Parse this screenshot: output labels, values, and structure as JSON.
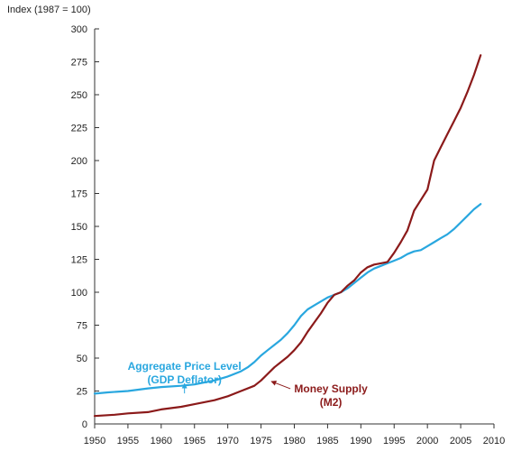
{
  "chart_data": {
    "type": "line",
    "title": "",
    "ylabel": "Index (1987 = 100)",
    "xlabel": "",
    "xlim": [
      1950,
      2010
    ],
    "ylim": [
      0,
      300
    ],
    "x_ticks": [
      1950,
      1955,
      1960,
      1965,
      1970,
      1975,
      1980,
      1985,
      1990,
      1995,
      2000,
      2005,
      2010
    ],
    "y_ticks": [
      0,
      25,
      50,
      75,
      100,
      125,
      150,
      175,
      200,
      225,
      250,
      275,
      300
    ],
    "grid": false,
    "colors": {
      "price": "#29a7df",
      "money": "#8b1a1a",
      "axis": "#333333"
    },
    "series": [
      {
        "key": "price",
        "x": [
          1950,
          1952,
          1955,
          1958,
          1960,
          1963,
          1965,
          1968,
          1970,
          1972,
          1973,
          1974,
          1975,
          1976,
          1977,
          1978,
          1979,
          1980,
          1981,
          1982,
          1983,
          1984,
          1985,
          1986,
          1987,
          1988,
          1989,
          1990,
          1991,
          1992,
          1993,
          1994,
          1995,
          1996,
          1997,
          1998,
          1999,
          2000,
          2001,
          2002,
          2003,
          2004,
          2005,
          2006,
          2007,
          2008
        ],
        "y": [
          23,
          24,
          25,
          27,
          28,
          29,
          30,
          33,
          36,
          40,
          43,
          47,
          52,
          56,
          60,
          64,
          69,
          75,
          82,
          87,
          90,
          93,
          96,
          98,
          100,
          103,
          107,
          111,
          115,
          118,
          120,
          122,
          124,
          126,
          129,
          131,
          132,
          135,
          138,
          141,
          144,
          148,
          153,
          158,
          163,
          167
        ]
      },
      {
        "key": "money",
        "x": [
          1950,
          1953,
          1955,
          1958,
          1960,
          1963,
          1965,
          1968,
          1970,
          1972,
          1974,
          1975,
          1976,
          1977,
          1978,
          1979,
          1980,
          1981,
          1982,
          1983,
          1984,
          1985,
          1986,
          1987,
          1988,
          1989,
          1990,
          1991,
          1992,
          1993,
          1994,
          1995,
          1996,
          1997,
          1998,
          1999,
          2000,
          2001,
          2002,
          2003,
          2004,
          2005,
          2006,
          2007,
          2008
        ],
        "y": [
          6,
          7,
          8,
          9,
          11,
          13,
          15,
          18,
          21,
          25,
          29,
          33,
          38,
          43,
          47,
          51,
          56,
          62,
          70,
          77,
          84,
          92,
          98,
          100,
          105,
          109,
          115,
          119,
          121,
          122,
          123,
          130,
          138,
          147,
          162,
          170,
          178,
          200,
          210,
          220,
          230,
          240,
          252,
          265,
          280
        ]
      }
    ],
    "annotations": [
      {
        "key": "price",
        "lines": [
          "Aggregate Price Level",
          "(GDP Deflator)"
        ],
        "x": 1963.5,
        "y": 41,
        "target": [
          1963.5,
          28
        ]
      },
      {
        "key": "money",
        "lines": [
          "Money Supply",
          "(M2)"
        ],
        "x": 1985.5,
        "y": 24,
        "target": [
          1976,
          33
        ]
      }
    ]
  }
}
